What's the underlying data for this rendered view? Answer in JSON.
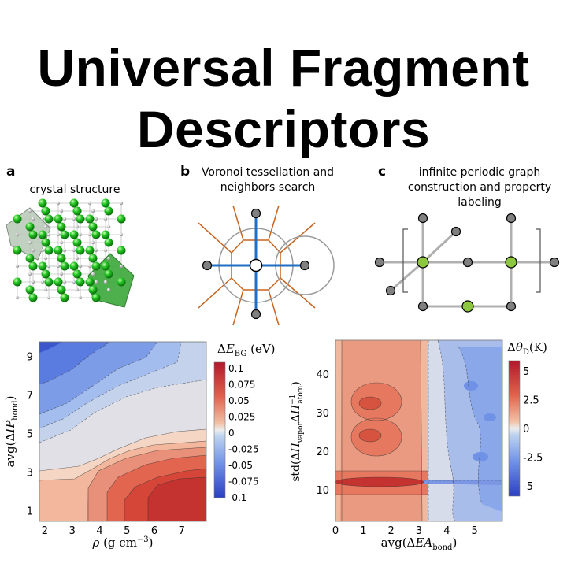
{
  "title": {
    "line1": "Universal Fragment",
    "line2": "Descriptors"
  },
  "panels": {
    "a": {
      "label": "a",
      "caption": "crystal structure"
    },
    "b": {
      "label": "b",
      "caption_line1": "Voronoi tessellation and",
      "caption_line2": "neighbors search"
    },
    "c": {
      "label": "c",
      "caption_line1": "infinite periodic graph",
      "caption_line2": "construction and property labeling"
    }
  },
  "colors": {
    "green_atom": "#22c322",
    "voronoi_edge": "#c8641e",
    "bond_blue": "#1f6fc4",
    "node_gray": "#808080",
    "graph_edge": "#b0b0b0",
    "graph_green": "#8dc63f"
  },
  "chart_data": [
    {
      "type": "heatmap",
      "subtype": "filled contour",
      "title": "",
      "xlabel": "ρ (g cm⁻³)",
      "ylabel": "avg(ΔIP_bond)",
      "xticks": [
        "2",
        "3",
        "4",
        "5",
        "6",
        "7"
      ],
      "yticks": [
        "1",
        "3",
        "5",
        "7",
        "9"
      ],
      "xlim": [
        1.8,
        7.9
      ],
      "ylim": [
        0.5,
        9.8
      ],
      "colorbar": {
        "label": "ΔE_BG (eV)",
        "ticks": [
          "0.1",
          "0.075",
          "0.05",
          "0.025",
          "0",
          "-0.025",
          "-0.05",
          "-0.075",
          "-0.1"
        ],
        "colormap": "blue-white-red diverging"
      }
    },
    {
      "type": "heatmap",
      "subtype": "filled contour",
      "title": "",
      "xlabel": "avg(ΔEA_bond)",
      "ylabel": "std(ΔH_vapor ΔH_atom⁻¹)",
      "xticks": [
        "0",
        "1",
        "2",
        "3",
        "4",
        "5"
      ],
      "yticks": [
        "10",
        "20",
        "30",
        "40"
      ],
      "xlim": [
        0,
        6
      ],
      "ylim": [
        2,
        49
      ],
      "colorbar": {
        "label": "Δθ_D(K)",
        "ticks": [
          "5",
          "2.5",
          "0",
          "-2.5",
          "-5"
        ],
        "colormap": "blue-white-red diverging"
      }
    }
  ]
}
